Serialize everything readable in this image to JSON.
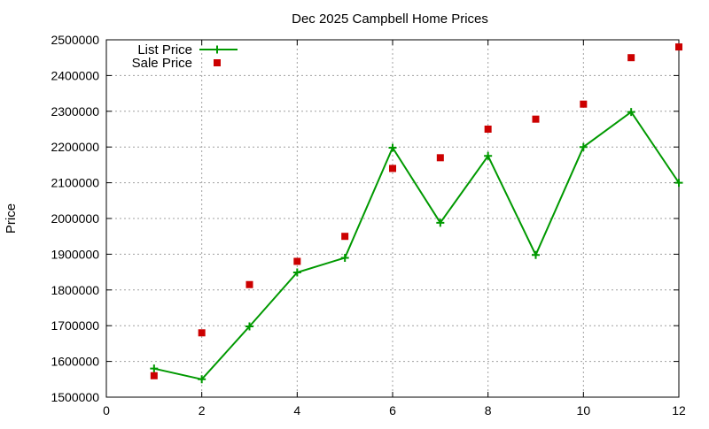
{
  "chart_data": {
    "type": "line",
    "title": "Dec 2025 Campbell Home Prices",
    "xlabel": "",
    "ylabel": "Price",
    "xlim": [
      0,
      12
    ],
    "ylim": [
      1500000,
      2500000
    ],
    "xticks": [
      0,
      2,
      4,
      6,
      8,
      10,
      12
    ],
    "yticks": [
      1500000,
      1600000,
      1700000,
      1800000,
      1900000,
      2000000,
      2100000,
      2200000,
      2300000,
      2400000,
      2500000
    ],
    "grid": true,
    "legend_position": "top-left",
    "series": [
      {
        "name": "List Price",
        "style": "line+plus",
        "color": "#009900",
        "x": [
          1,
          2,
          3,
          4,
          5,
          6,
          7,
          8,
          9,
          10,
          11,
          12
        ],
        "y": [
          1580000,
          1550000,
          1698000,
          1849000,
          1890000,
          2198000,
          1988000,
          2175000,
          1898000,
          2200000,
          2298000,
          2100000
        ]
      },
      {
        "name": "Sale Price",
        "style": "square",
        "color": "#cc0000",
        "x": [
          1,
          2,
          3,
          4,
          5,
          6,
          7,
          8,
          9,
          10,
          11,
          12
        ],
        "y": [
          1560000,
          1680000,
          1815000,
          1880000,
          1950000,
          2140000,
          2170000,
          2250000,
          2278000,
          2320000,
          2450000,
          2480000
        ]
      }
    ]
  }
}
